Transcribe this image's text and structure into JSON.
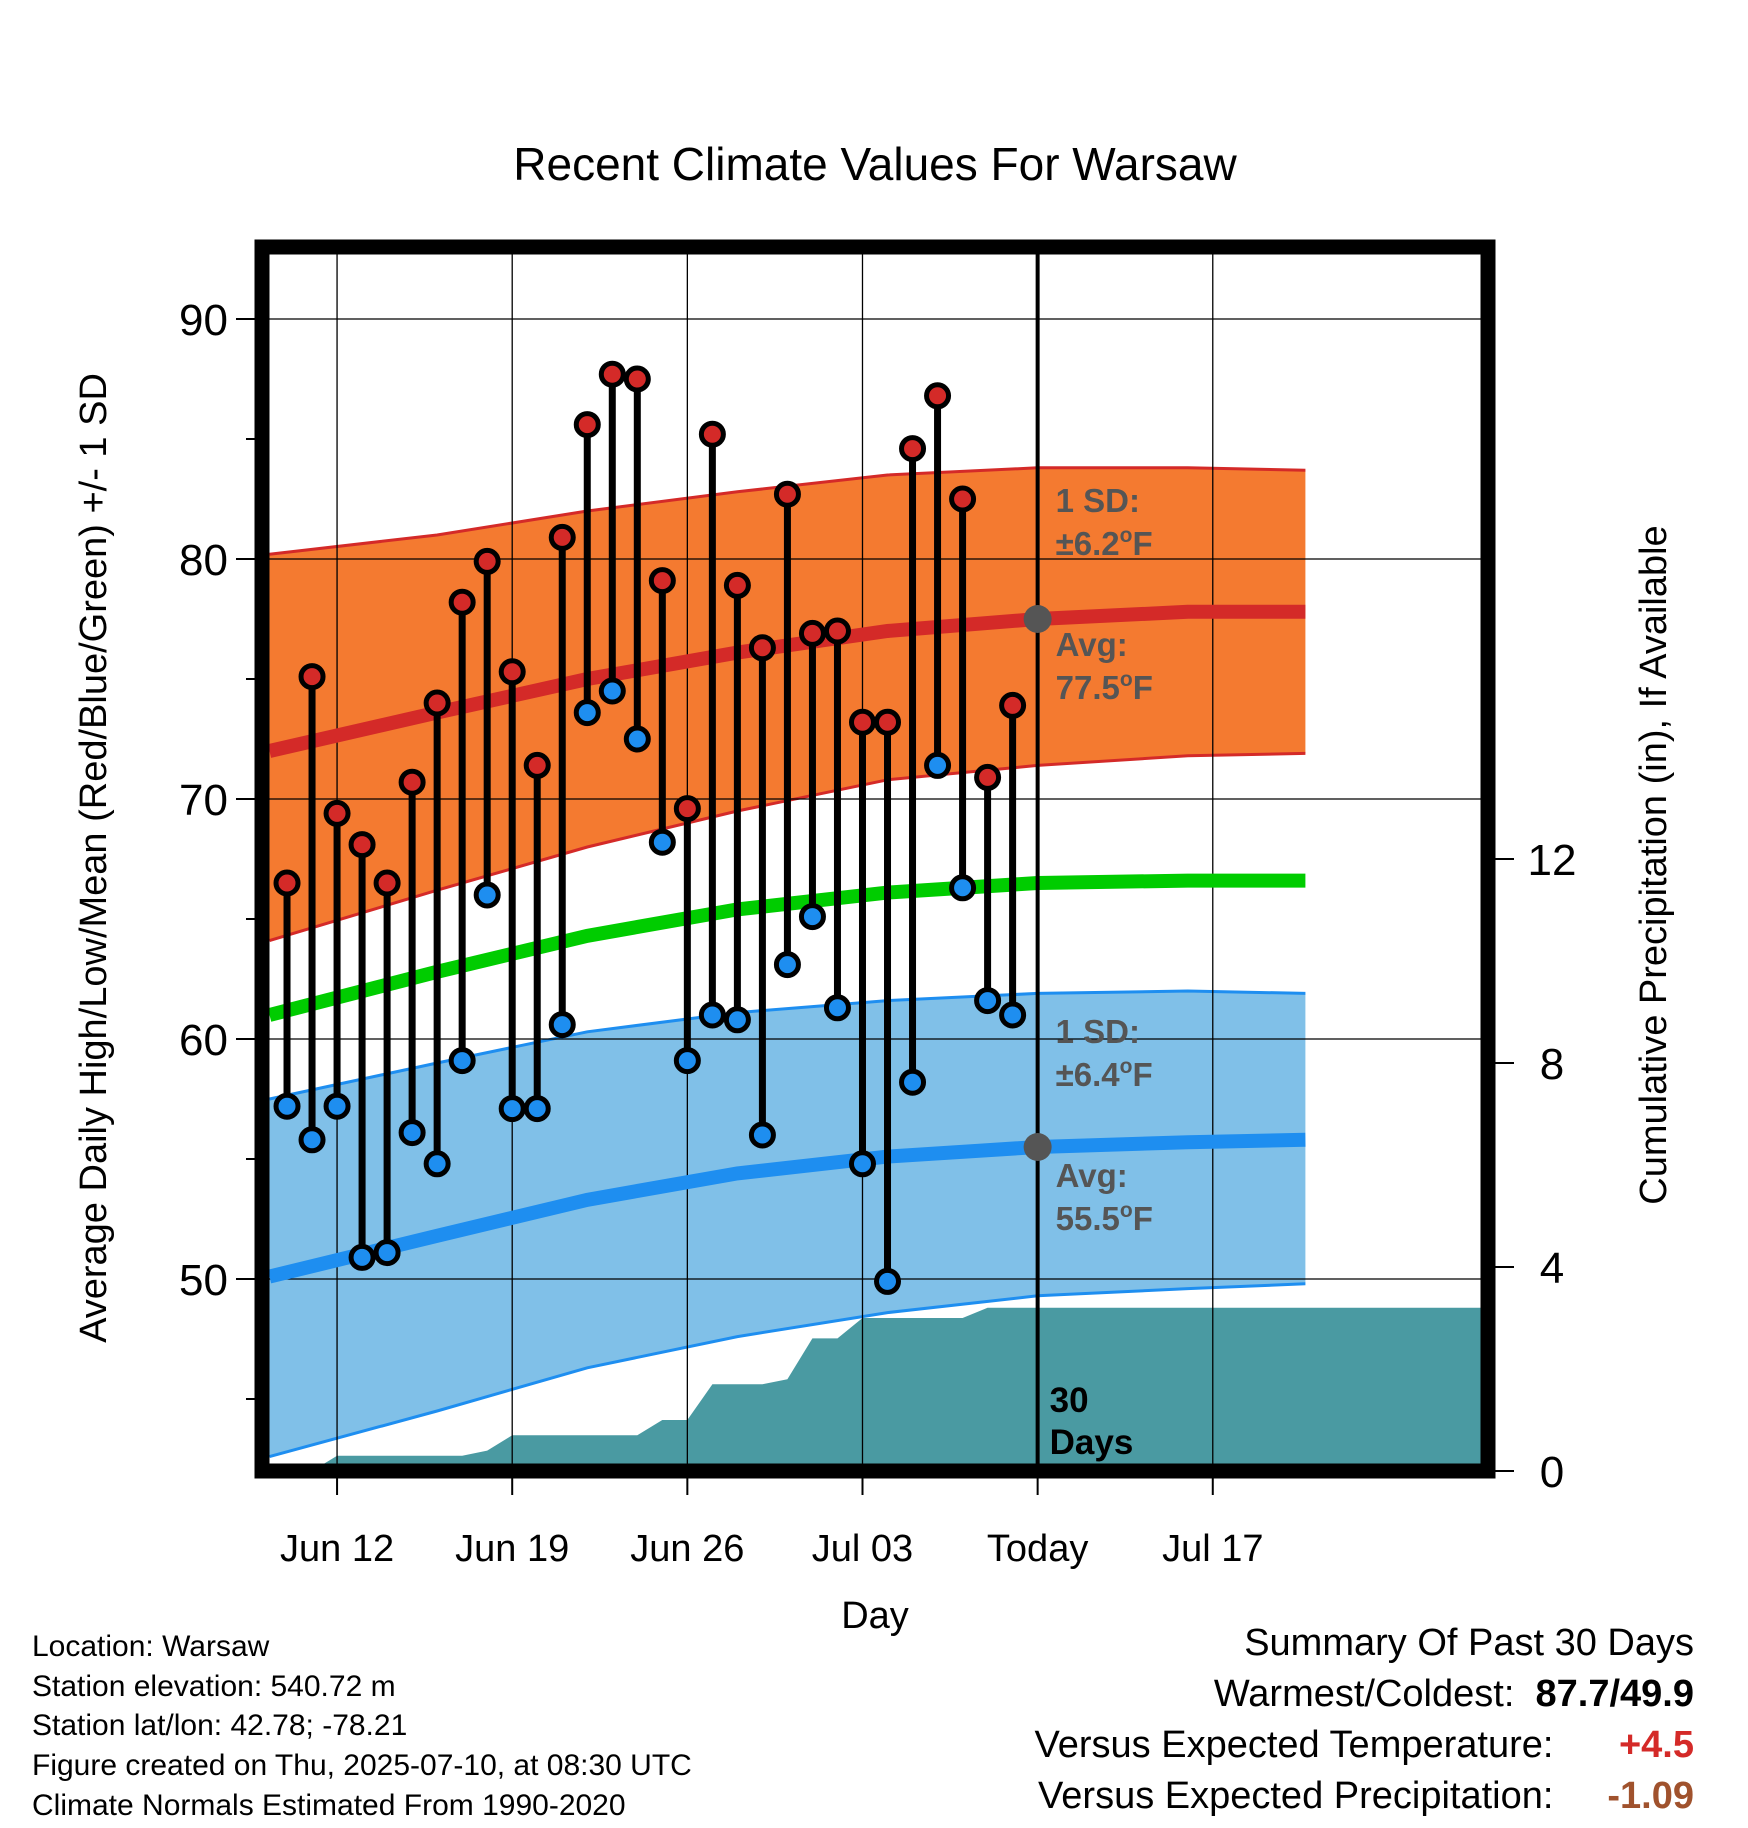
{
  "chart_data": {
    "type": "line",
    "title": "Recent Climate Values For Warsaw",
    "xlabel": "Day",
    "ylabel_left": "Average Daily High/Low/Mean (Red/Blue/Green) +/- 1 SD",
    "ylabel_right": "Cumulative Precipitation (in), If Available",
    "y_range_left": [
      42,
      93
    ],
    "y_range_right": [
      0,
      24
    ],
    "x_range_days": [
      -3,
      46
    ],
    "x_ticks": [
      {
        "day": 0,
        "label": "Jun 12"
      },
      {
        "day": 7,
        "label": "Jun 19"
      },
      {
        "day": 14,
        "label": "Jun 26"
      },
      {
        "day": 21,
        "label": "Jul 03"
      },
      {
        "day": 28,
        "label": "Today"
      },
      {
        "day": 35,
        "label": "Jul 17"
      }
    ],
    "y_ticks_left": [
      50,
      60,
      70,
      80,
      90
    ],
    "y_ticks_right": [
      0,
      4,
      8,
      12
    ],
    "today_day": 28,
    "grid": true,
    "normals": {
      "days": [
        -2.7,
        4,
        10,
        16,
        22,
        28,
        34,
        38.7
      ],
      "high_mean": [
        72.0,
        73.6,
        75.0,
        76.1,
        77.0,
        77.5,
        77.8,
        77.8
      ],
      "high_upper": [
        80.2,
        81.0,
        82.0,
        82.8,
        83.5,
        83.8,
        83.8,
        83.7
      ],
      "high_lower": [
        64.1,
        66.2,
        68.0,
        69.5,
        70.8,
        71.4,
        71.8,
        71.9
      ],
      "daily_mean": [
        61.0,
        62.8,
        64.3,
        65.4,
        66.1,
        66.5,
        66.6,
        66.6
      ],
      "low_mean": [
        50.1,
        51.8,
        53.3,
        54.4,
        55.1,
        55.5,
        55.7,
        55.8
      ],
      "low_upper": [
        57.5,
        59.0,
        60.3,
        61.1,
        61.6,
        61.9,
        62.0,
        61.9
      ],
      "low_lower": [
        42.6,
        44.5,
        46.3,
        47.6,
        48.6,
        49.3,
        49.6,
        49.8
      ]
    },
    "daily": {
      "days": [
        -2,
        -1,
        0,
        1,
        2,
        3,
        4,
        5,
        6,
        7,
        8,
        9,
        10,
        11,
        12,
        13,
        14,
        15,
        16,
        17,
        18,
        19,
        20,
        21,
        22,
        23,
        24,
        25,
        26,
        27
      ],
      "highs": [
        66.5,
        75.1,
        69.4,
        68.1,
        66.5,
        70.7,
        74.0,
        78.2,
        79.9,
        75.3,
        71.4,
        80.9,
        85.6,
        87.7,
        87.5,
        79.1,
        69.6,
        85.2,
        78.9,
        76.3,
        82.7,
        76.9,
        77.0,
        73.2,
        73.2,
        84.6,
        86.8,
        82.5,
        70.9,
        73.9
      ],
      "lows": [
        57.2,
        55.8,
        57.2,
        50.9,
        51.1,
        56.1,
        54.8,
        59.1,
        66.0,
        57.1,
        57.1,
        60.6,
        73.6,
        74.5,
        72.5,
        68.2,
        59.1,
        61.0,
        60.8,
        56.0,
        63.1,
        65.1,
        61.3,
        54.8,
        49.9,
        58.2,
        71.4,
        66.3,
        61.6,
        61.0
      ]
    },
    "precip": {
      "days": [
        -3,
        -1,
        0,
        1,
        5,
        6,
        7,
        12,
        13,
        14,
        15,
        16,
        17,
        18,
        19,
        20,
        21,
        22,
        25,
        26,
        27,
        28,
        46
      ],
      "cumulative": [
        0.0,
        0.0,
        0.3,
        0.3,
        0.3,
        0.4,
        0.7,
        0.7,
        1.0,
        1.0,
        1.7,
        1.7,
        1.7,
        1.8,
        2.6,
        2.6,
        3.0,
        3.0,
        3.0,
        3.2,
        3.2,
        3.2,
        3.2
      ]
    },
    "annotations": {
      "high_sd": {
        "line1": "1 SD:",
        "line2": "±6.2",
        "unit": "F"
      },
      "high_avg": {
        "line1": "Avg:",
        "line2": "77.5",
        "unit": "F",
        "value": 77.5
      },
      "low_sd": {
        "line1": "1 SD:",
        "line2": "±6.4",
        "unit": "F"
      },
      "low_avg": {
        "line1": "Avg:",
        "line2": "55.5",
        "unit": "F",
        "value": 55.5
      },
      "period": {
        "line1": "30",
        "line2": "Days"
      },
      "degree_symbol": "o"
    },
    "colors": {
      "high_band": "#f47a30",
      "high_line": "#d42a28",
      "high_dot": "#d42a28",
      "low_band": "#80c0e8",
      "low_line": "#1e8ef0",
      "low_dot": "#1e8ef0",
      "mean_line": "#00cc00",
      "precip": "#4a9aa2",
      "annotation_text": "#555555",
      "today_dot": "#555555"
    }
  },
  "info": {
    "location": "Location: Warsaw",
    "elevation": "Station elevation: 540.72 m",
    "latlon": "Station lat/lon: 42.78; -78.21",
    "created": "Figure created on Thu, 2025-07-10, at 08:30 UTC",
    "normals": "Climate Normals Estimated From 1990-2020"
  },
  "summary": {
    "title": "Summary Of Past 30 Days",
    "warm_cold_label": "Warmest/Coldest:",
    "warm_cold_value": "87.7/49.9",
    "temp_label": "Versus Expected Temperature:",
    "temp_value": "+4.5",
    "temp_color": "#d42a28",
    "precip_label": "Versus Expected Precipitation:",
    "precip_value": "-1.09",
    "precip_color": "#a0522d"
  }
}
